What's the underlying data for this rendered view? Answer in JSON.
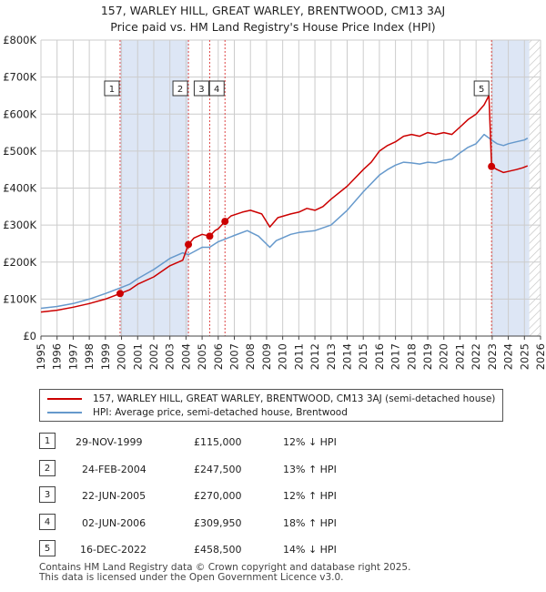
{
  "title_line1": "157, WARLEY HILL, GREAT WARLEY, BRENTWOOD, CM13 3AJ",
  "title_line2": "Price paid vs. HM Land Registry's House Price Index (HPI)",
  "colors": {
    "price_line": "#cc0000",
    "hpi_line": "#6699cc",
    "shade": "#dde6f5",
    "hatch": "#bbbbbb",
    "grid": "#cccccc",
    "vline": "#dd4444"
  },
  "chart_data": {
    "type": "line",
    "title": "157, WARLEY HILL, GREAT WARLEY, BRENTWOOD, CM13 3AJ — Price paid vs. HM Land Registry's House Price Index (HPI)",
    "xlabel": "",
    "ylabel": "",
    "xlim": [
      1995,
      2026
    ],
    "ylim": [
      0,
      800000
    ],
    "x_ticks": [
      "1995",
      "1996",
      "1997",
      "1998",
      "1999",
      "2000",
      "2001",
      "2002",
      "2003",
      "2004",
      "2005",
      "2006",
      "2007",
      "2008",
      "2009",
      "2010",
      "2011",
      "2012",
      "2013",
      "2014",
      "2015",
      "2016",
      "2017",
      "2018",
      "2019",
      "2020",
      "2021",
      "2022",
      "2023",
      "2024",
      "2025",
      "2026"
    ],
    "y_ticks": [
      {
        "value": 0,
        "label": "£0"
      },
      {
        "value": 100000,
        "label": "£100K"
      },
      {
        "value": 200000,
        "label": "£200K"
      },
      {
        "value": 300000,
        "label": "£300K"
      },
      {
        "value": 400000,
        "label": "£400K"
      },
      {
        "value": 500000,
        "label": "£500K"
      },
      {
        "value": 600000,
        "label": "£600K"
      },
      {
        "value": 700000,
        "label": "£700K"
      },
      {
        "value": 800000,
        "label": "£800K"
      }
    ],
    "shaded_ranges": [
      [
        1999.91,
        2004.15
      ],
      [
        2022.96,
        2025.3
      ]
    ],
    "hatched_range": [
      2025.3,
      2026
    ],
    "series": [
      {
        "name": "157, WARLEY HILL, GREAT WARLEY, BRENTWOOD, CM13 3AJ (semi-detached house)",
        "x": [
          1995.0,
          1996.0,
          1997.0,
          1998.0,
          1999.0,
          1999.91,
          2000.5,
          2001.0,
          2002.0,
          2003.0,
          2003.8,
          2004.15,
          2004.5,
          2005.0,
          2005.47,
          2005.8,
          2006.0,
          2006.42,
          2006.8,
          2007.5,
          2008.0,
          2008.7,
          2009.2,
          2009.7,
          2010.5,
          2011.0,
          2011.5,
          2012.0,
          2012.5,
          2013.0,
          2014.0,
          2015.0,
          2015.5,
          2016.0,
          2016.5,
          2017.0,
          2017.5,
          2018.0,
          2018.5,
          2019.0,
          2019.5,
          2020.0,
          2020.5,
          2021.0,
          2021.5,
          2022.0,
          2022.5,
          2022.8,
          2022.96,
          2023.3,
          2023.7,
          2024.0,
          2024.5,
          2024.9,
          2025.2
        ],
        "values": [
          65000,
          70000,
          78000,
          88000,
          100000,
          115000,
          125000,
          140000,
          160000,
          190000,
          205000,
          247500,
          265000,
          275000,
          270000,
          285000,
          290000,
          309950,
          325000,
          335000,
          340000,
          330000,
          295000,
          320000,
          330000,
          335000,
          345000,
          340000,
          350000,
          370000,
          405000,
          450000,
          470000,
          500000,
          515000,
          525000,
          540000,
          545000,
          540000,
          550000,
          545000,
          550000,
          545000,
          565000,
          585000,
          600000,
          625000,
          650000,
          458500,
          450000,
          442000,
          445000,
          450000,
          455000,
          460000
        ]
      },
      {
        "name": "HPI: Average price, semi-detached house, Brentwood",
        "x": [
          1995.0,
          1996.0,
          1997.0,
          1998.0,
          1999.0,
          1999.91,
          2000.5,
          2001.0,
          2002.0,
          2003.0,
          2003.8,
          2004.15,
          2005.0,
          2005.47,
          2006.0,
          2006.42,
          2007.0,
          2007.8,
          2008.5,
          2009.2,
          2009.6,
          2010.5,
          2011.0,
          2012.0,
          2013.0,
          2014.0,
          2015.0,
          2016.0,
          2016.5,
          2017.0,
          2017.5,
          2018.0,
          2018.5,
          2019.0,
          2019.5,
          2020.0,
          2020.5,
          2021.0,
          2021.5,
          2022.0,
          2022.5,
          2022.96,
          2023.3,
          2023.7,
          2024.0,
          2024.5,
          2025.0,
          2025.2
        ],
        "values": [
          75000,
          80000,
          88000,
          100000,
          115000,
          130000,
          140000,
          155000,
          180000,
          210000,
          225000,
          220000,
          240000,
          240000,
          255000,
          262000,
          272000,
          285000,
          270000,
          240000,
          258000,
          275000,
          280000,
          285000,
          300000,
          340000,
          390000,
          435000,
          450000,
          462000,
          470000,
          468000,
          465000,
          470000,
          468000,
          475000,
          478000,
          495000,
          510000,
          520000,
          545000,
          530000,
          520000,
          515000,
          520000,
          525000,
          530000,
          535000
        ]
      }
    ],
    "sales": [
      {
        "marker": "1",
        "x": 1999.91,
        "value": 115000
      },
      {
        "marker": "2",
        "x": 2004.15,
        "value": 247500
      },
      {
        "marker": "3",
        "x": 2005.47,
        "value": 270000
      },
      {
        "marker": "4",
        "x": 2006.42,
        "value": 309950
      },
      {
        "marker": "5",
        "x": 2022.96,
        "value": 458500
      }
    ]
  },
  "legend": {
    "price_label": "157, WARLEY HILL, GREAT WARLEY, BRENTWOOD, CM13 3AJ (semi-detached house)",
    "hpi_label": "HPI: Average price, semi-detached house, Brentwood"
  },
  "sales_table": [
    {
      "num": "1",
      "date": "29-NOV-1999",
      "price": "£115,000",
      "hpi": "12% ↓ HPI"
    },
    {
      "num": "2",
      "date": "24-FEB-2004",
      "price": "£247,500",
      "hpi": "13% ↑ HPI"
    },
    {
      "num": "3",
      "date": "22-JUN-2005",
      "price": "£270,000",
      "hpi": "12% ↑ HPI"
    },
    {
      "num": "4",
      "date": "02-JUN-2006",
      "price": "£309,950",
      "hpi": "18% ↑ HPI"
    },
    {
      "num": "5",
      "date": "16-DEC-2022",
      "price": "£458,500",
      "hpi": "14% ↓ HPI"
    }
  ],
  "footer": {
    "line1": "Contains HM Land Registry data © Crown copyright and database right 2025.",
    "line2": "This data is licensed under the Open Government Licence v3.0."
  }
}
